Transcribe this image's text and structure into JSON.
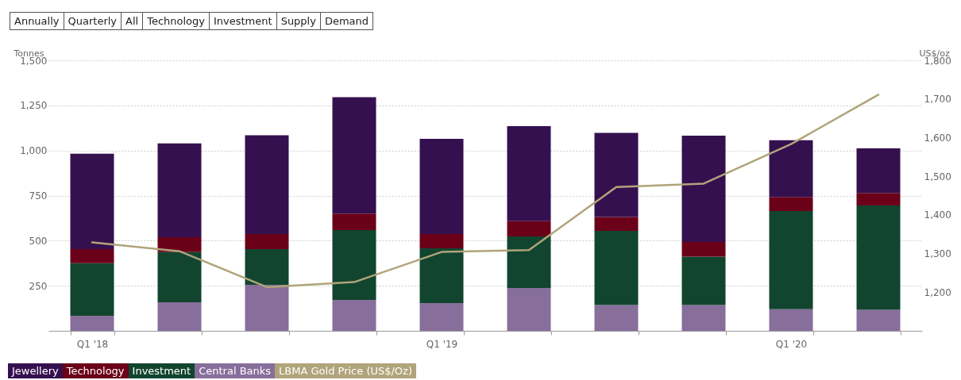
{
  "chart_data": {
    "type": "bar",
    "stacked": true,
    "ylabel": "Tonnes",
    "y2label": "US$/oz",
    "annotations": [
      "Annually",
      "Quarterly",
      "All",
      "Technology",
      "Investment",
      "Supply",
      "Demand"
    ],
    "categories": [
      "Q1 '18",
      null,
      null,
      null,
      "Q1 '19",
      null,
      null,
      null,
      "Q1 '20",
      null
    ],
    "series": [
      {
        "name": "Central Banks",
        "color": "#876e9b",
        "values": [
          84,
          158,
          255,
          172,
          154,
          237,
          143,
          143,
          120,
          117
        ]
      },
      {
        "name": "Investment",
        "color": "#11452f",
        "values": [
          291,
          279,
          198,
          387,
          304,
          286,
          411,
          268,
          544,
          578
        ]
      },
      {
        "name": "Technology",
        "color": "#6b0019",
        "values": [
          78,
          82,
          84,
          91,
          79,
          85,
          77,
          82,
          78,
          69
        ]
      },
      {
        "name": "Jewellery",
        "color": "#35104f",
        "values": [
          529,
          520,
          547,
          645,
          528,
          527,
          467,
          589,
          315,
          248
        ]
      },
      {
        "name": "LBMA Gold Price (US$/Oz)",
        "type": "line",
        "axis": "y2",
        "color": "#b0a47a",
        "values": [
          1329,
          1306,
          1213,
          1226,
          1304,
          1309,
          1472,
          1481,
          1583,
          1711
        ]
      }
    ],
    "ylim": [
      0,
      1500
    ],
    "yticks": [
      250,
      500,
      750,
      {
        "value": 1000,
        "label": "1,000"
      },
      {
        "value": 1250,
        "label": "1,250"
      },
      {
        "value": 1500,
        "label": "1,500"
      }
    ],
    "y2lim": [
      1100,
      1800
    ],
    "y2ticks": [
      {
        "value": 1200,
        "label": "1,200"
      },
      {
        "value": 1300,
        "label": "1,300"
      },
      {
        "value": 1400,
        "label": "1,400"
      },
      {
        "value": 1500,
        "label": "1,500"
      },
      {
        "value": 1600,
        "label": "1,600"
      },
      {
        "value": 1700,
        "label": "1,700"
      },
      {
        "value": 1800,
        "label": "1,800"
      }
    ],
    "grid": "y",
    "legend": "bottom"
  }
}
